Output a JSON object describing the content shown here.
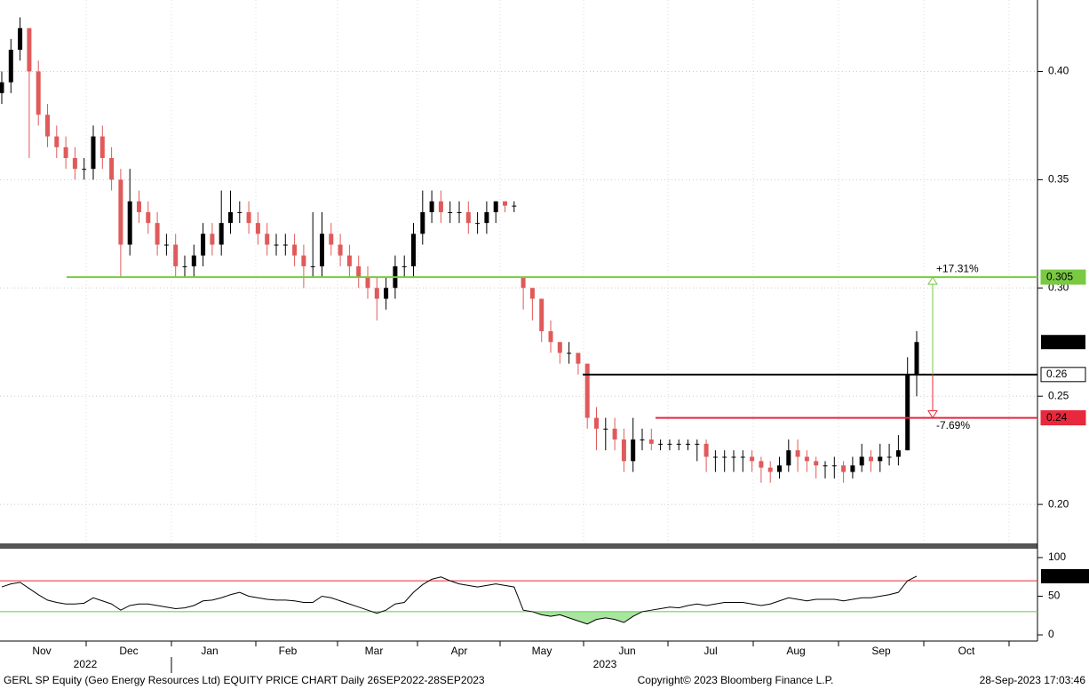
{
  "chart_data": [
    {
      "type": "candlestick",
      "ohlc": [
        [
          0.39,
          0.4,
          0.385,
          0.395
        ],
        [
          0.395,
          0.415,
          0.39,
          0.41
        ],
        [
          0.41,
          0.425,
          0.405,
          0.42
        ],
        [
          0.42,
          0.42,
          0.36,
          0.4
        ],
        [
          0.4,
          0.405,
          0.375,
          0.38
        ],
        [
          0.38,
          0.385,
          0.365,
          0.37
        ],
        [
          0.37,
          0.375,
          0.36,
          0.365
        ],
        [
          0.365,
          0.37,
          0.355,
          0.36
        ],
        [
          0.36,
          0.365,
          0.35,
          0.355
        ],
        [
          0.355,
          0.36,
          0.35,
          0.355
        ],
        [
          0.355,
          0.375,
          0.35,
          0.37
        ],
        [
          0.37,
          0.375,
          0.355,
          0.36
        ],
        [
          0.36,
          0.365,
          0.345,
          0.35
        ],
        [
          0.35,
          0.355,
          0.305,
          0.32
        ],
        [
          0.32,
          0.355,
          0.315,
          0.34
        ],
        [
          0.34,
          0.345,
          0.33,
          0.335
        ],
        [
          0.335,
          0.34,
          0.325,
          0.33
        ],
        [
          0.33,
          0.335,
          0.315,
          0.32
        ],
        [
          0.32,
          0.325,
          0.315,
          0.32
        ],
        [
          0.32,
          0.325,
          0.305,
          0.31
        ],
        [
          0.31,
          0.315,
          0.305,
          0.31
        ],
        [
          0.31,
          0.32,
          0.305,
          0.315
        ],
        [
          0.315,
          0.33,
          0.31,
          0.325
        ],
        [
          0.325,
          0.33,
          0.315,
          0.32
        ],
        [
          0.32,
          0.345,
          0.315,
          0.33
        ],
        [
          0.33,
          0.345,
          0.325,
          0.335
        ],
        [
          0.335,
          0.34,
          0.33,
          0.335
        ],
        [
          0.335,
          0.34,
          0.325,
          0.33
        ],
        [
          0.33,
          0.335,
          0.32,
          0.325
        ],
        [
          0.325,
          0.33,
          0.315,
          0.32
        ],
        [
          0.32,
          0.325,
          0.315,
          0.32
        ],
        [
          0.32,
          0.325,
          0.315,
          0.32
        ],
        [
          0.32,
          0.325,
          0.31,
          0.315
        ],
        [
          0.315,
          0.32,
          0.3,
          0.31
        ],
        [
          0.31,
          0.335,
          0.305,
          0.31
        ],
        [
          0.31,
          0.335,
          0.305,
          0.325
        ],
        [
          0.325,
          0.33,
          0.315,
          0.32
        ],
        [
          0.32,
          0.325,
          0.31,
          0.315
        ],
        [
          0.315,
          0.32,
          0.305,
          0.31
        ],
        [
          0.31,
          0.315,
          0.3,
          0.305
        ],
        [
          0.305,
          0.31,
          0.295,
          0.3
        ],
        [
          0.3,
          0.305,
          0.285,
          0.295
        ],
        [
          0.295,
          0.305,
          0.29,
          0.3
        ],
        [
          0.3,
          0.315,
          0.295,
          0.31
        ],
        [
          0.31,
          0.315,
          0.305,
          0.31
        ],
        [
          0.31,
          0.33,
          0.305,
          0.325
        ],
        [
          0.325,
          0.345,
          0.32,
          0.335
        ],
        [
          0.335,
          0.345,
          0.33,
          0.34
        ],
        [
          0.34,
          0.345,
          0.33,
          0.335
        ],
        [
          0.335,
          0.34,
          0.33,
          0.335
        ],
        [
          0.335,
          0.34,
          0.33,
          0.335
        ],
        [
          0.335,
          0.34,
          0.325,
          0.33
        ],
        [
          0.33,
          0.335,
          0.325,
          0.33
        ],
        [
          0.33,
          0.34,
          0.325,
          0.335
        ],
        [
          0.335,
          0.34,
          0.33,
          0.34
        ],
        [
          0.34,
          0.34,
          0.335,
          0.338
        ],
        [
          0.338,
          0.34,
          0.335,
          0.338
        ],
        [
          0.305,
          0.305,
          0.29,
          0.3
        ],
        [
          0.3,
          0.3,
          0.285,
          0.295
        ],
        [
          0.295,
          0.295,
          0.275,
          0.28
        ],
        [
          0.28,
          0.285,
          0.27,
          0.275
        ],
        [
          0.275,
          0.275,
          0.265,
          0.27
        ],
        [
          0.27,
          0.275,
          0.265,
          0.27
        ],
        [
          0.27,
          0.27,
          0.26,
          0.265
        ],
        [
          0.265,
          0.265,
          0.235,
          0.24
        ],
        [
          0.24,
          0.245,
          0.225,
          0.235
        ],
        [
          0.235,
          0.24,
          0.225,
          0.235
        ],
        [
          0.235,
          0.24,
          0.225,
          0.23
        ],
        [
          0.23,
          0.235,
          0.215,
          0.22
        ],
        [
          0.22,
          0.24,
          0.215,
          0.23
        ],
        [
          0.23,
          0.235,
          0.225,
          0.23
        ],
        [
          0.23,
          0.235,
          0.225,
          0.228
        ],
        [
          0.228,
          0.23,
          0.225,
          0.228
        ],
        [
          0.228,
          0.23,
          0.225,
          0.228
        ],
        [
          0.228,
          0.23,
          0.225,
          0.228
        ],
        [
          0.228,
          0.23,
          0.225,
          0.228
        ],
        [
          0.228,
          0.23,
          0.22,
          0.228
        ],
        [
          0.228,
          0.23,
          0.215,
          0.222
        ],
        [
          0.222,
          0.225,
          0.215,
          0.222
        ],
        [
          0.222,
          0.225,
          0.215,
          0.222
        ],
        [
          0.222,
          0.225,
          0.215,
          0.222
        ],
        [
          0.222,
          0.225,
          0.215,
          0.222
        ],
        [
          0.222,
          0.225,
          0.215,
          0.22
        ],
        [
          0.22,
          0.222,
          0.21,
          0.217
        ],
        [
          0.217,
          0.22,
          0.21,
          0.215
        ],
        [
          0.215,
          0.222,
          0.212,
          0.218
        ],
        [
          0.218,
          0.23,
          0.215,
          0.225
        ],
        [
          0.225,
          0.23,
          0.215,
          0.222
        ],
        [
          0.222,
          0.225,
          0.215,
          0.22
        ],
        [
          0.22,
          0.222,
          0.212,
          0.218
        ],
        [
          0.218,
          0.22,
          0.212,
          0.218
        ],
        [
          0.218,
          0.222,
          0.212,
          0.218
        ],
        [
          0.218,
          0.22,
          0.21,
          0.215
        ],
        [
          0.215,
          0.222,
          0.212,
          0.218
        ],
        [
          0.218,
          0.228,
          0.215,
          0.222
        ],
        [
          0.222,
          0.225,
          0.215,
          0.22
        ],
        [
          0.22,
          0.228,
          0.215,
          0.222
        ],
        [
          0.222,
          0.228,
          0.218,
          0.222
        ],
        [
          0.222,
          0.232,
          0.218,
          0.225
        ],
        [
          0.225,
          0.268,
          0.225,
          0.26
        ],
        [
          0.26,
          0.28,
          0.25,
          0.275
        ]
      ],
      "up_color": "#000000",
      "down_color": "#e05a5a",
      "ylim": [
        0.182,
        0.433
      ],
      "yticks": [
        {
          "value": 0.2,
          "label": "0.20"
        },
        0.25,
        {
          "value": 0.3,
          "label": "0.30"
        },
        0.35,
        {
          "value": 0.4,
          "label": "0.40"
        }
      ],
      "levels": [
        {
          "value": 0.305,
          "color": "#7ac943"
        },
        {
          "value": 0.26,
          "color": "#000000"
        },
        {
          "value": 0.24,
          "color": "#e8283c"
        }
      ],
      "annotations": [
        "+17.31%",
        "-7.69%"
      ],
      "months": [
        "Nov",
        "Dec",
        "Jan",
        "Feb",
        "Mar",
        "Apr",
        "May",
        "Jun",
        "Jul",
        "Aug",
        "Sep",
        "Oct"
      ],
      "years": [
        "2022",
        "2023"
      ]
    },
    {
      "type": "line",
      "values": [
        62,
        66,
        68,
        60,
        52,
        45,
        42,
        40,
        40,
        41,
        48,
        44,
        40,
        32,
        38,
        40,
        40,
        38,
        36,
        34,
        35,
        38,
        44,
        45,
        48,
        52,
        55,
        50,
        48,
        46,
        45,
        45,
        44,
        42,
        42,
        50,
        48,
        44,
        40,
        36,
        32,
        28,
        32,
        40,
        42,
        55,
        65,
        72,
        75,
        70,
        66,
        64,
        62,
        64,
        66,
        64,
        62,
        32,
        30,
        26,
        24,
        26,
        22,
        18,
        14,
        20,
        22,
        20,
        16,
        24,
        30,
        32,
        34,
        36,
        35,
        38,
        40,
        38,
        40,
        42,
        42,
        42,
        40,
        38,
        40,
        44,
        48,
        46,
        44,
        46,
        46,
        46,
        44,
        46,
        48,
        48,
        50,
        52,
        55,
        70,
        75.9335
      ],
      "color": "#000000",
      "ylim": [
        -8,
        111.5
      ],
      "yticks": [
        100,
        50,
        0
      ],
      "levels": [
        {
          "value": 70,
          "color": "#e8283c"
        },
        {
          "value": 30,
          "color": "#5ccb45"
        }
      ]
    }
  ],
  "footer": {
    "left": "GERL SP Equity (Geo Energy Resources Ltd) EQUITY PRICE CHART  Daily 26SEP2022-28SEP2023",
    "center": "Copyright© 2023 Bloomberg Finance L.P.",
    "right": "28-Sep-2023 17:03:46"
  }
}
